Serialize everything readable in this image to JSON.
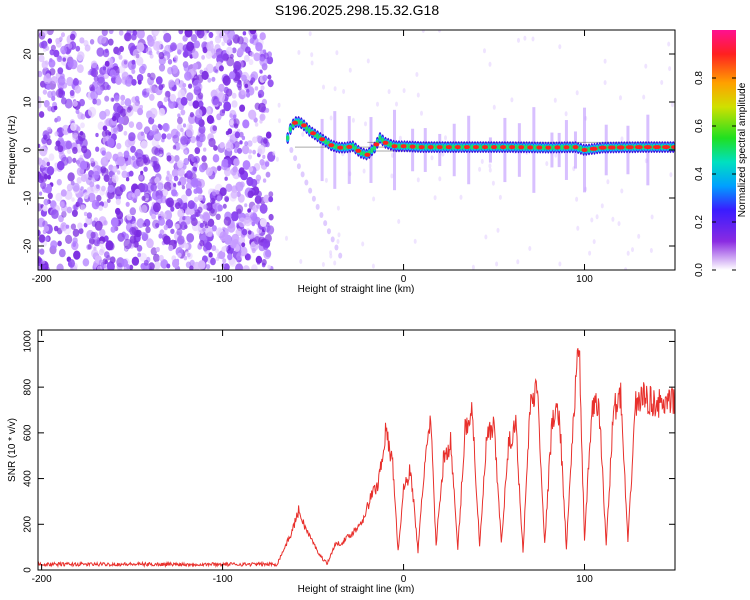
{
  "title": "S196.2025.298.15.32.G18",
  "chart_data": [
    {
      "type": "heatmap",
      "xlabel": "Height of straight line (km)",
      "ylabel": "Frequency (Hz)",
      "xlim": [
        -202,
        150
      ],
      "ylim": [
        -25,
        25
      ],
      "xticks": [
        "-200",
        "-100",
        "0",
        "100"
      ],
      "xtick_values": [
        -200,
        -100,
        0,
        100
      ],
      "yticks": [
        "20",
        "10",
        "0",
        "-10",
        "-20"
      ],
      "ytick_values": [
        20,
        10,
        0,
        -10,
        -20
      ],
      "colorbar": {
        "label": "Normalized spectral amplitude",
        "ticks": [
          "0.0",
          "0.2",
          "0.4",
          "0.6",
          "0.8"
        ],
        "tick_values": [
          0.0,
          0.2,
          0.4,
          0.6,
          0.8
        ],
        "range": [
          0,
          1
        ]
      },
      "noise_region_x": [
        -202,
        -73
      ],
      "ridge": {
        "x": [
          -64,
          -62,
          -59,
          -56,
          -52,
          -48,
          -44,
          -40,
          -36,
          -32,
          -28,
          -24,
          -20,
          -16,
          -13,
          -10,
          -5,
          0,
          10,
          20,
          40,
          60,
          80,
          95,
          100,
          110,
          130,
          150
        ],
        "y": [
          2.5,
          5,
          6,
          5.5,
          4,
          3,
          2,
          1,
          0.5,
          0.5,
          0.8,
          -0.5,
          -1,
          0.5,
          2.5,
          1.5,
          0.8,
          0.8,
          0.6,
          0.6,
          0.6,
          0.6,
          0.5,
          0.6,
          0,
          0.5,
          0.6,
          0.6
        ]
      },
      "vertical_streak_x": [
        -45,
        -38,
        -30,
        -18,
        -5,
        5,
        12,
        20,
        28,
        36,
        48,
        56,
        64,
        72,
        82,
        86,
        90,
        95,
        100,
        112,
        124,
        135
      ]
    },
    {
      "type": "line",
      "xlabel": "Height of straight line (km)",
      "ylabel": "SNR (10 * v/v)",
      "xlim": [
        -202,
        150
      ],
      "ylim": [
        0,
        1050
      ],
      "xticks": [
        "-200",
        "-100",
        "0",
        "100"
      ],
      "xtick_values": [
        -200,
        -100,
        0,
        100
      ],
      "yticks": [
        "0",
        "200",
        "400",
        "600",
        "800",
        "1000"
      ],
      "ytick_values": [
        0,
        200,
        400,
        600,
        800,
        1000
      ],
      "series_color": "#e8302c",
      "x": [
        -202,
        -150,
        -100,
        -70,
        -62,
        -58,
        -54,
        -50,
        -46,
        -42,
        -38,
        -34,
        -30,
        -26,
        -22,
        -18,
        -14,
        -10,
        -6,
        -3,
        0,
        4,
        8,
        12,
        15,
        18,
        22,
        26,
        30,
        34,
        38,
        42,
        46,
        50,
        54,
        58,
        62,
        66,
        70,
        74,
        78,
        82,
        86,
        90,
        94,
        97,
        100,
        104,
        108,
        112,
        116,
        120,
        124,
        128,
        132,
        136,
        140,
        145,
        150
      ],
      "y": [
        25,
        25,
        25,
        25,
        160,
        260,
        180,
        120,
        60,
        30,
        110,
        120,
        150,
        180,
        230,
        320,
        380,
        600,
        470,
        80,
        350,
        440,
        80,
        500,
        640,
        110,
        480,
        560,
        90,
        620,
        700,
        100,
        580,
        620,
        120,
        540,
        640,
        80,
        720,
        800,
        110,
        640,
        700,
        95,
        680,
        1000,
        120,
        700,
        720,
        110,
        700,
        760,
        120,
        720,
        760,
        740,
        730,
        720,
        740
      ]
    }
  ]
}
